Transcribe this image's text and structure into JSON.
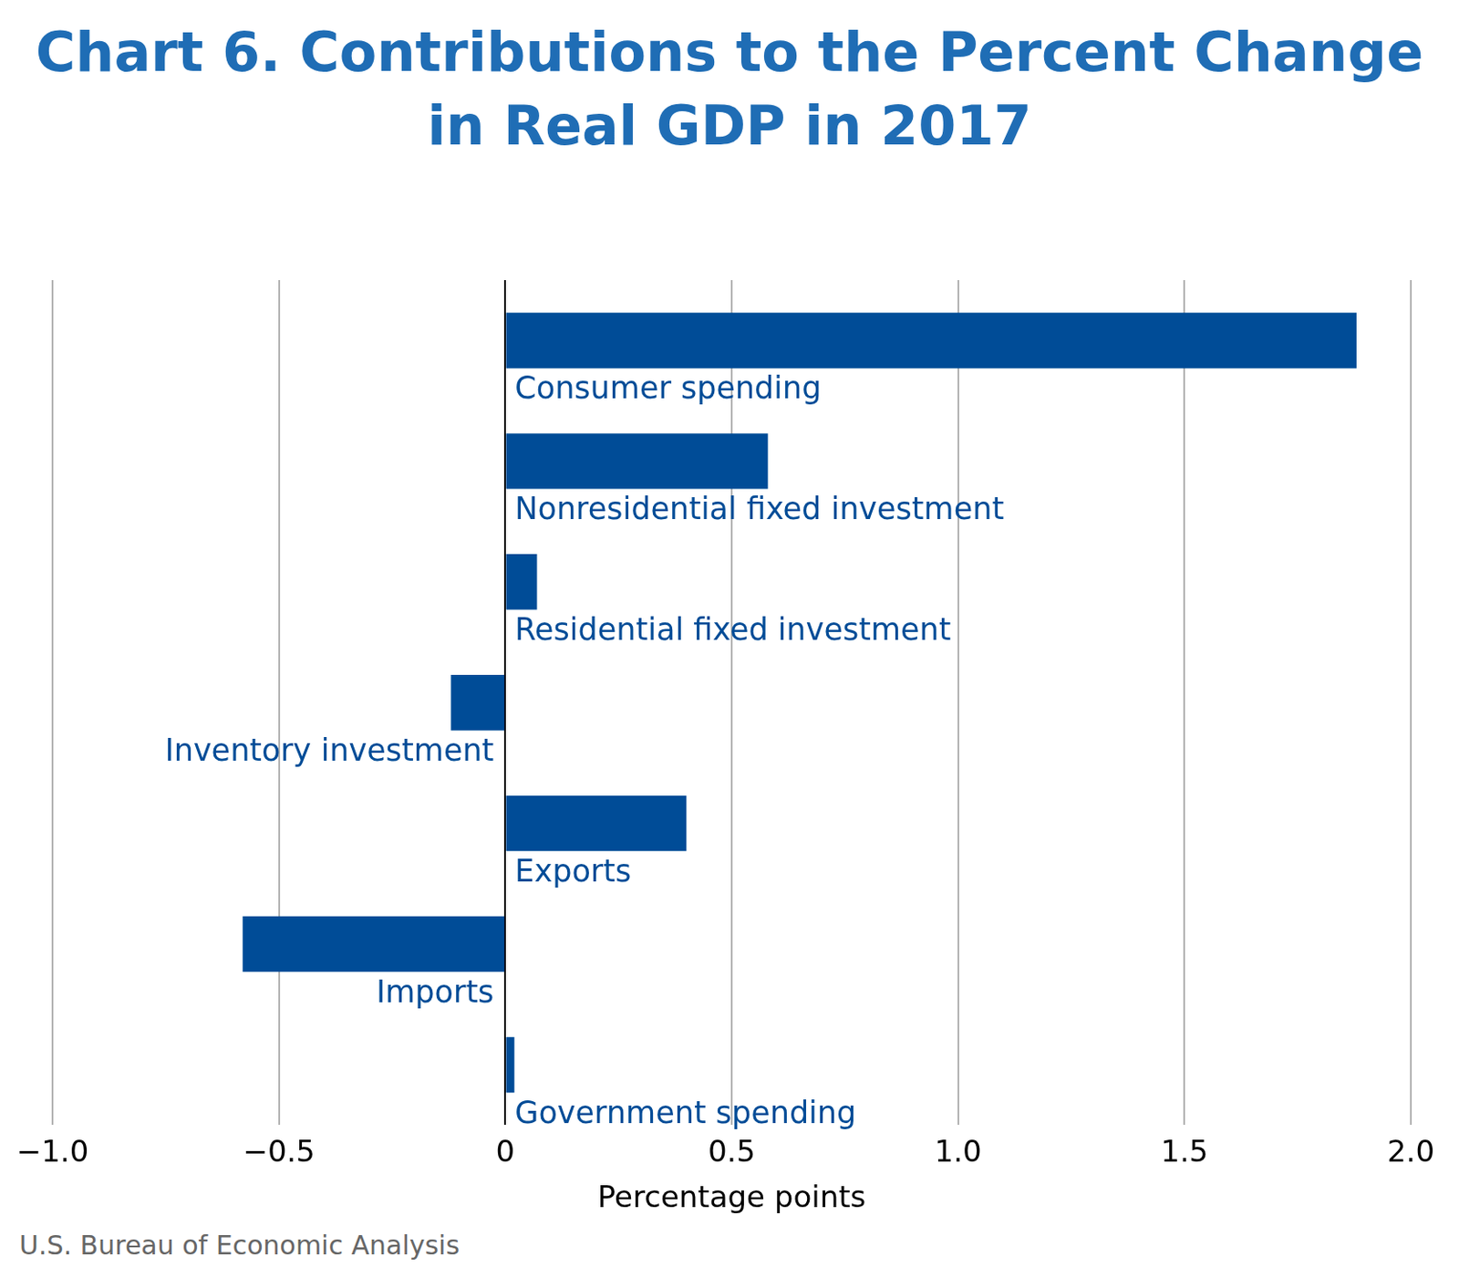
{
  "chart_data": {
    "type": "bar",
    "orientation": "horizontal",
    "title": "Chart 6. Contributions to the Percent Change in Real GDP in 2017",
    "x_label": "Percentage points",
    "source": "U.S. Bureau of Economic Analysis",
    "categories": [
      "Consumer spending",
      "Nonresidential fixed investment",
      "Residential fixed investment",
      "Inventory investment",
      "Exports",
      "Imports",
      "Government spending"
    ],
    "values": [
      1.88,
      0.58,
      0.07,
      -0.12,
      0.4,
      -0.58,
      0.02
    ],
    "color": "#004c97",
    "xlim": [
      -1,
      2
    ],
    "xticks": [
      {
        "value": -1,
        "label": "−1.0"
      },
      {
        "value": -0.5,
        "label": "−0.5"
      },
      0,
      0.5,
      {
        "value": 1,
        "label": "1.0"
      },
      1.5,
      {
        "value": 2,
        "label": "2.0"
      }
    ],
    "grid": true
  }
}
